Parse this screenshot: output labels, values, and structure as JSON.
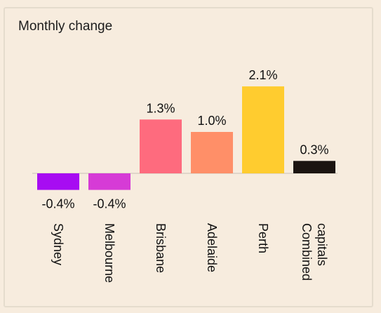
{
  "chart_data": {
    "type": "bar",
    "title": "Monthly change",
    "categories": [
      "Sydney",
      "Melbourne",
      "Brisbane",
      "Adelaide",
      "Perth",
      "Combined capitals"
    ],
    "category_lines": [
      [
        "Sydney"
      ],
      [
        "Melbourne"
      ],
      [
        "Brisbane"
      ],
      [
        "Adelaide"
      ],
      [
        "Perth"
      ],
      [
        "Combined",
        "capitals"
      ]
    ],
    "values": [
      -0.4,
      -0.4,
      1.3,
      1.0,
      2.1,
      0.3
    ],
    "value_labels": [
      "-0.4%",
      "-0.4%",
      "1.3%",
      "1.0%",
      "2.1%",
      "0.3%"
    ],
    "colors": [
      "#a70cf2",
      "#d63bd6",
      "#fe6b7e",
      "#ff8f68",
      "#ffcc2f",
      "#1b1410"
    ],
    "grid": false,
    "ylim": [
      -0.4,
      2.1
    ]
  }
}
